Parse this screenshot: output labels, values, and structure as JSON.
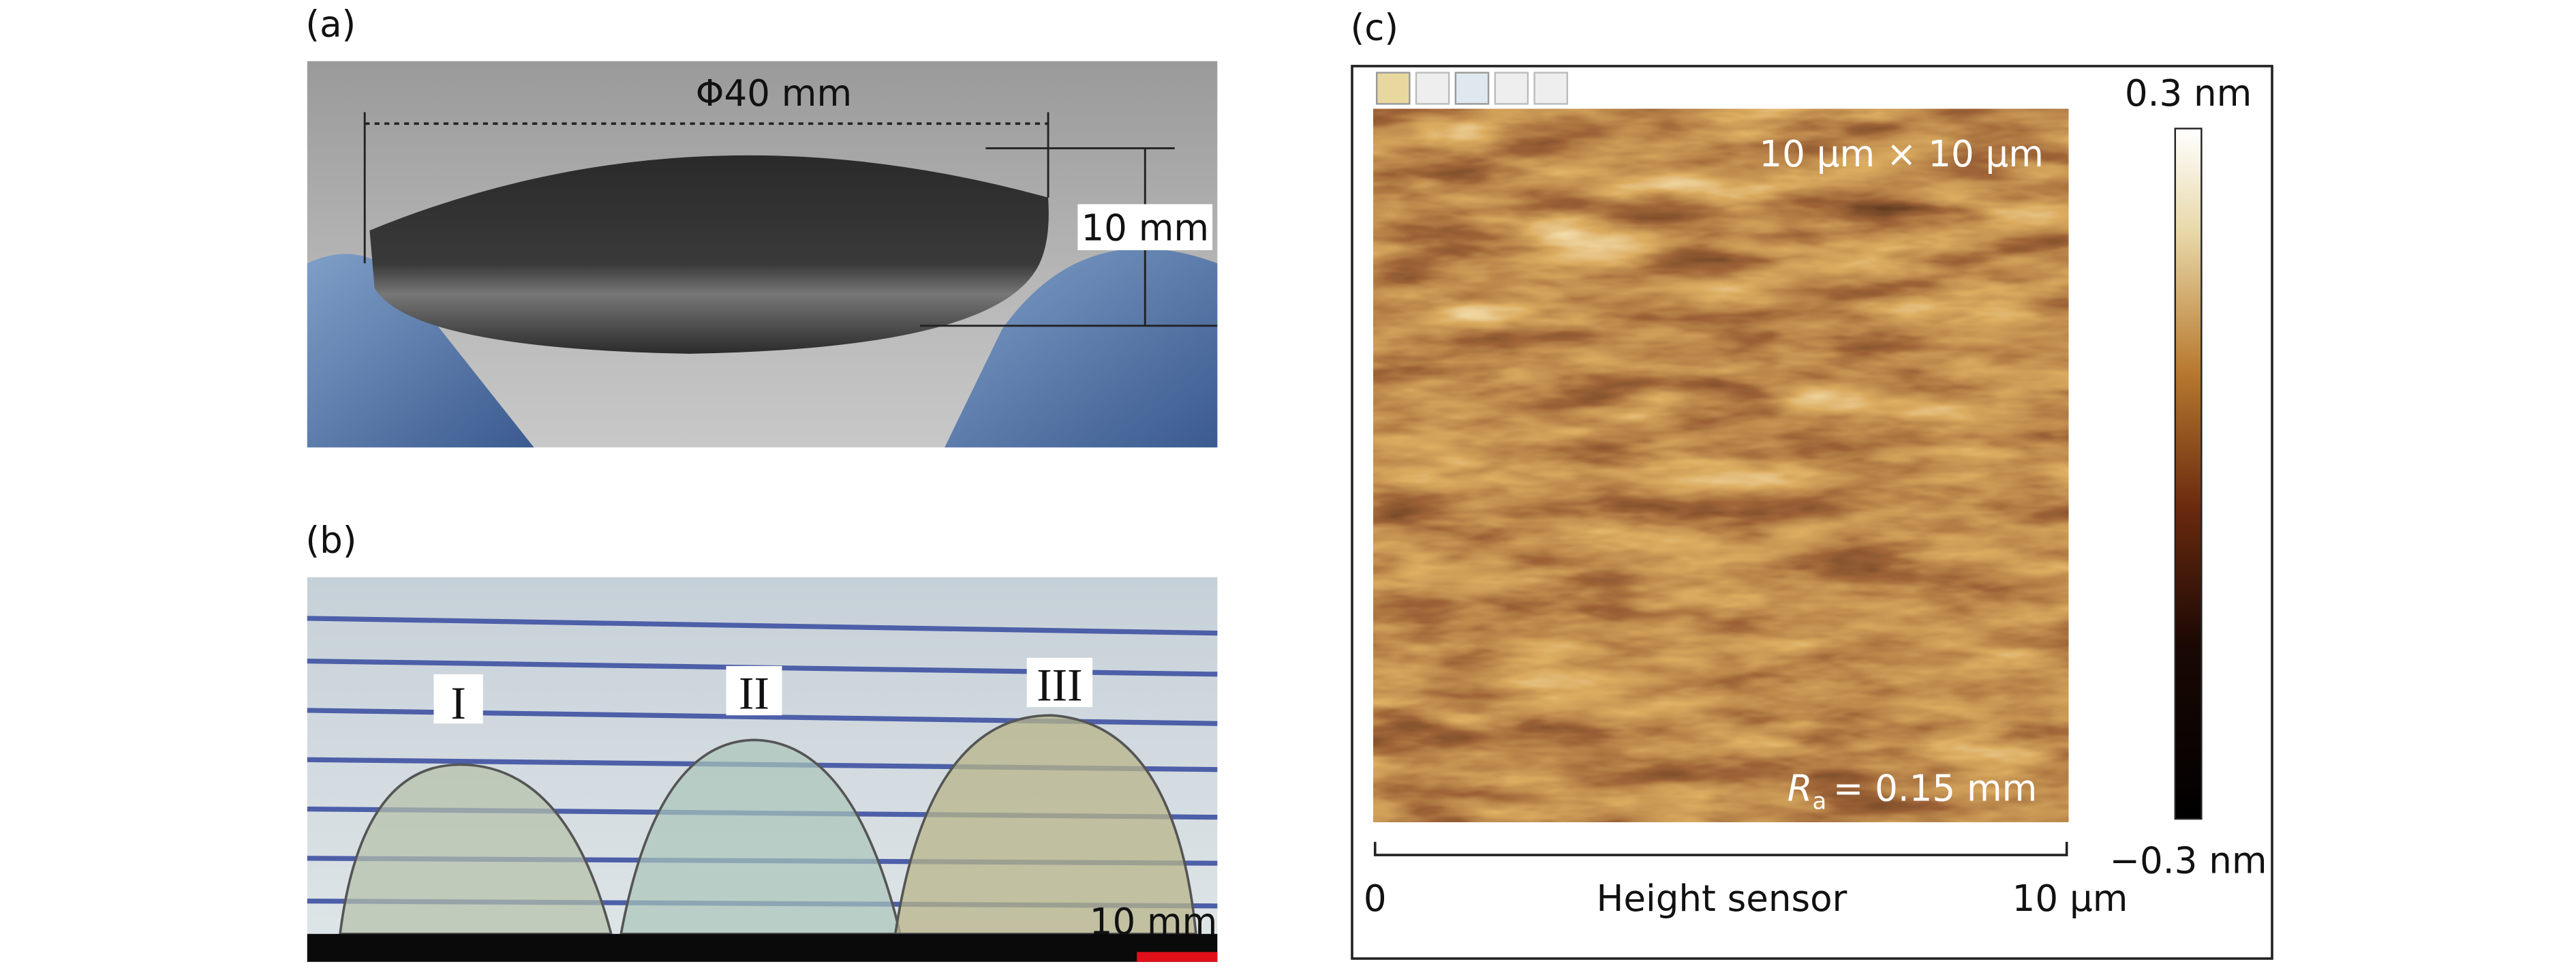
{
  "panels": {
    "a": {
      "label": "(a)",
      "diameter": "Φ40 mm",
      "thickness": "10 mm"
    },
    "b": {
      "label": "(b)",
      "drops": [
        "I",
        "II",
        "III"
      ],
      "scale": "10 mm"
    },
    "c": {
      "label": "(c)",
      "scan_size": "10 μm × 10 μm",
      "roughness": {
        "symbol": "R",
        "subscript": "a",
        "text": "= 0.15 mm"
      },
      "colorbar": {
        "max": "0.3 nm",
        "min": "−0.3 nm"
      },
      "axis": {
        "start": "0",
        "title": "Height sensor",
        "end": "10 μm"
      }
    }
  }
}
